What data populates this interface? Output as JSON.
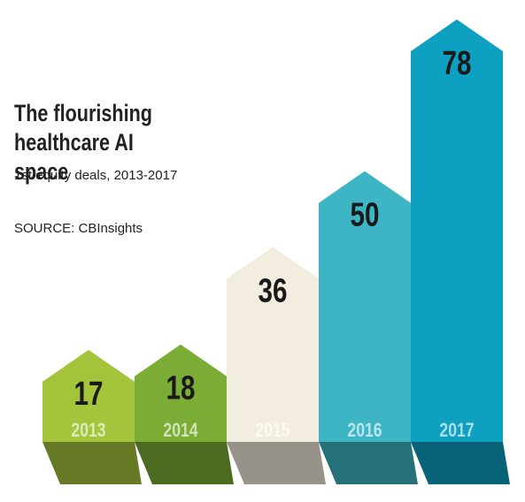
{
  "chart_data": {
    "type": "bar",
    "title": "The flourishing healthcare AI space",
    "subtitle": "1st equity deals, 2013-2017",
    "source": "SOURCE: CBInsights",
    "categories": [
      "2013",
      "2014",
      "2015",
      "2016",
      "2017"
    ],
    "values": [
      17,
      18,
      36,
      50,
      78
    ],
    "colors": [
      "#a4c43b",
      "#7aac36",
      "#f3eddf",
      "#3db5c5",
      "#0ea0c1"
    ]
  }
}
